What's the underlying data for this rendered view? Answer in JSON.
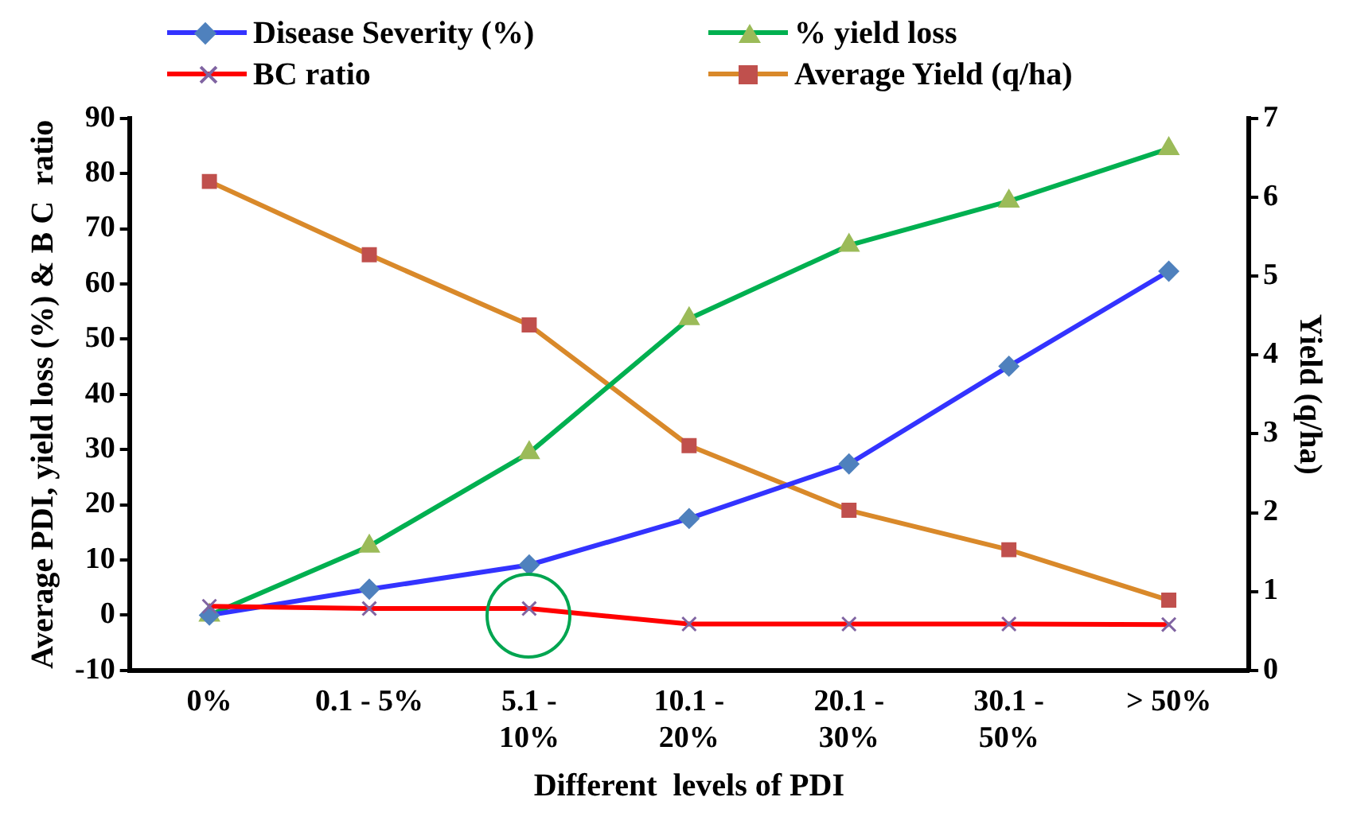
{
  "chart_data": {
    "type": "line",
    "categories": [
      "0%",
      "0.1 - 5%",
      "5.1 - 10%",
      "10.1 - 20%",
      "20.1 - 30%",
      "30.1 - 50%",
      "> 50%"
    ],
    "xlabel": "Different  levels of PDI",
    "ylabel": "Average PDI, yield loss (%) & B C  ratio",
    "y2label": "Yield (q/ha)",
    "ylim": [
      -10,
      90
    ],
    "yticks": [
      -10,
      0,
      10,
      20,
      30,
      40,
      50,
      60,
      70,
      80,
      90
    ],
    "y2lim": [
      0,
      7
    ],
    "y2ticks": [
      0,
      1,
      2,
      3,
      4,
      5,
      6,
      7
    ],
    "grid": false,
    "legend": "top",
    "series": [
      {
        "name": "Disease Severity (%)",
        "color": "#3333ff",
        "marker": "diamond",
        "values": [
          0,
          4.7,
          9.1,
          17.5,
          27.4,
          45.1,
          62.3
        ]
      },
      {
        "name": "% yield loss",
        "color": "#00b050",
        "marker": "triangle",
        "values": [
          0,
          12.5,
          29.4,
          53.7,
          67,
          75,
          84.5
        ]
      },
      {
        "name": "BC ratio",
        "color": "#ff0000",
        "marker": "cross",
        "values": [
          1.6,
          1.2,
          1.2,
          -1.6,
          -1.6,
          -1.6,
          -1.7
        ]
      },
      {
        "name": "Average Yield (q/ha)",
        "color": "#d9892a",
        "marker": "square",
        "axis": "y2",
        "values": [
          6.2,
          5.27,
          4.38,
          2.85,
          2.03,
          1.53,
          0.89
        ]
      }
    ]
  }
}
